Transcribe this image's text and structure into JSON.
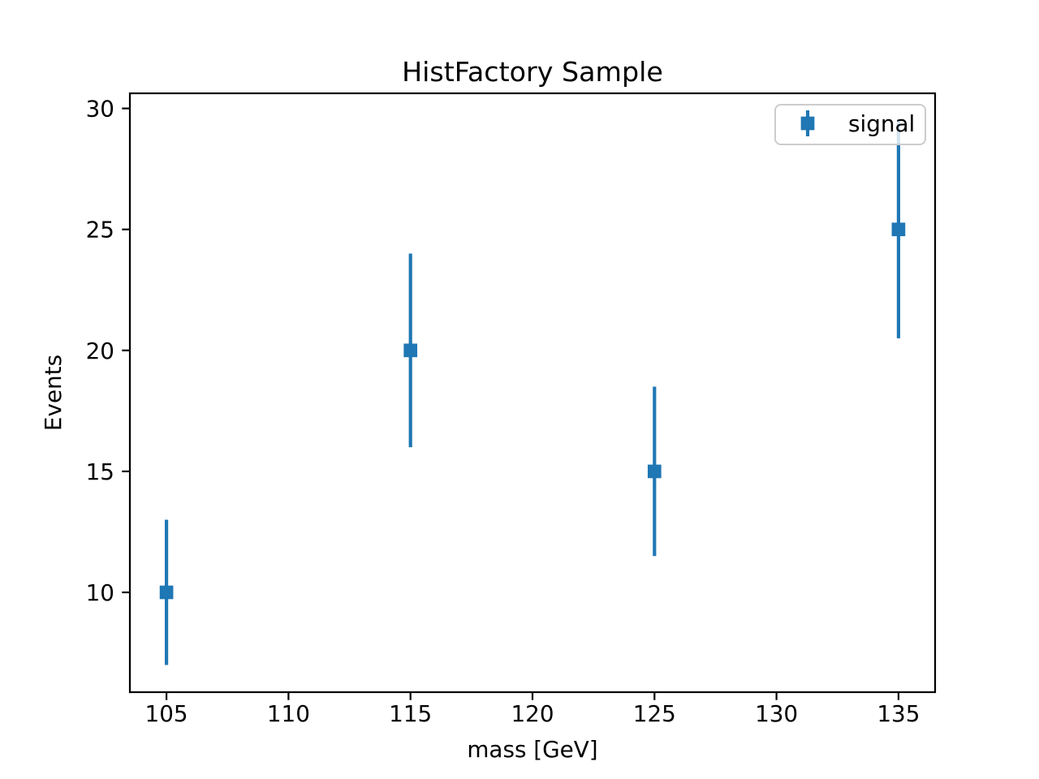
{
  "chart_data": {
    "type": "scatter",
    "title": "HistFactory Sample",
    "xlabel": "mass [GeV]",
    "ylabel": "Events",
    "series": [
      {
        "name": "signal",
        "x": [
          105,
          115,
          125,
          135
        ],
        "y": [
          10,
          20,
          15,
          25
        ],
        "yerr": [
          3,
          4,
          3.5,
          4.5
        ],
        "marker": "square",
        "color": "#1f77b4"
      }
    ],
    "xlim": [
      103.5,
      136.5
    ],
    "ylim": [
      5.875,
      30.625
    ],
    "xticks": [
      105,
      110,
      115,
      120,
      125,
      130,
      135
    ],
    "yticks": [
      10,
      15,
      20,
      25,
      30
    ],
    "grid": false,
    "legend": {
      "position": "upper right",
      "frame_color": "#cccccc",
      "background": "rgba(255,255,255,0.8)"
    }
  }
}
